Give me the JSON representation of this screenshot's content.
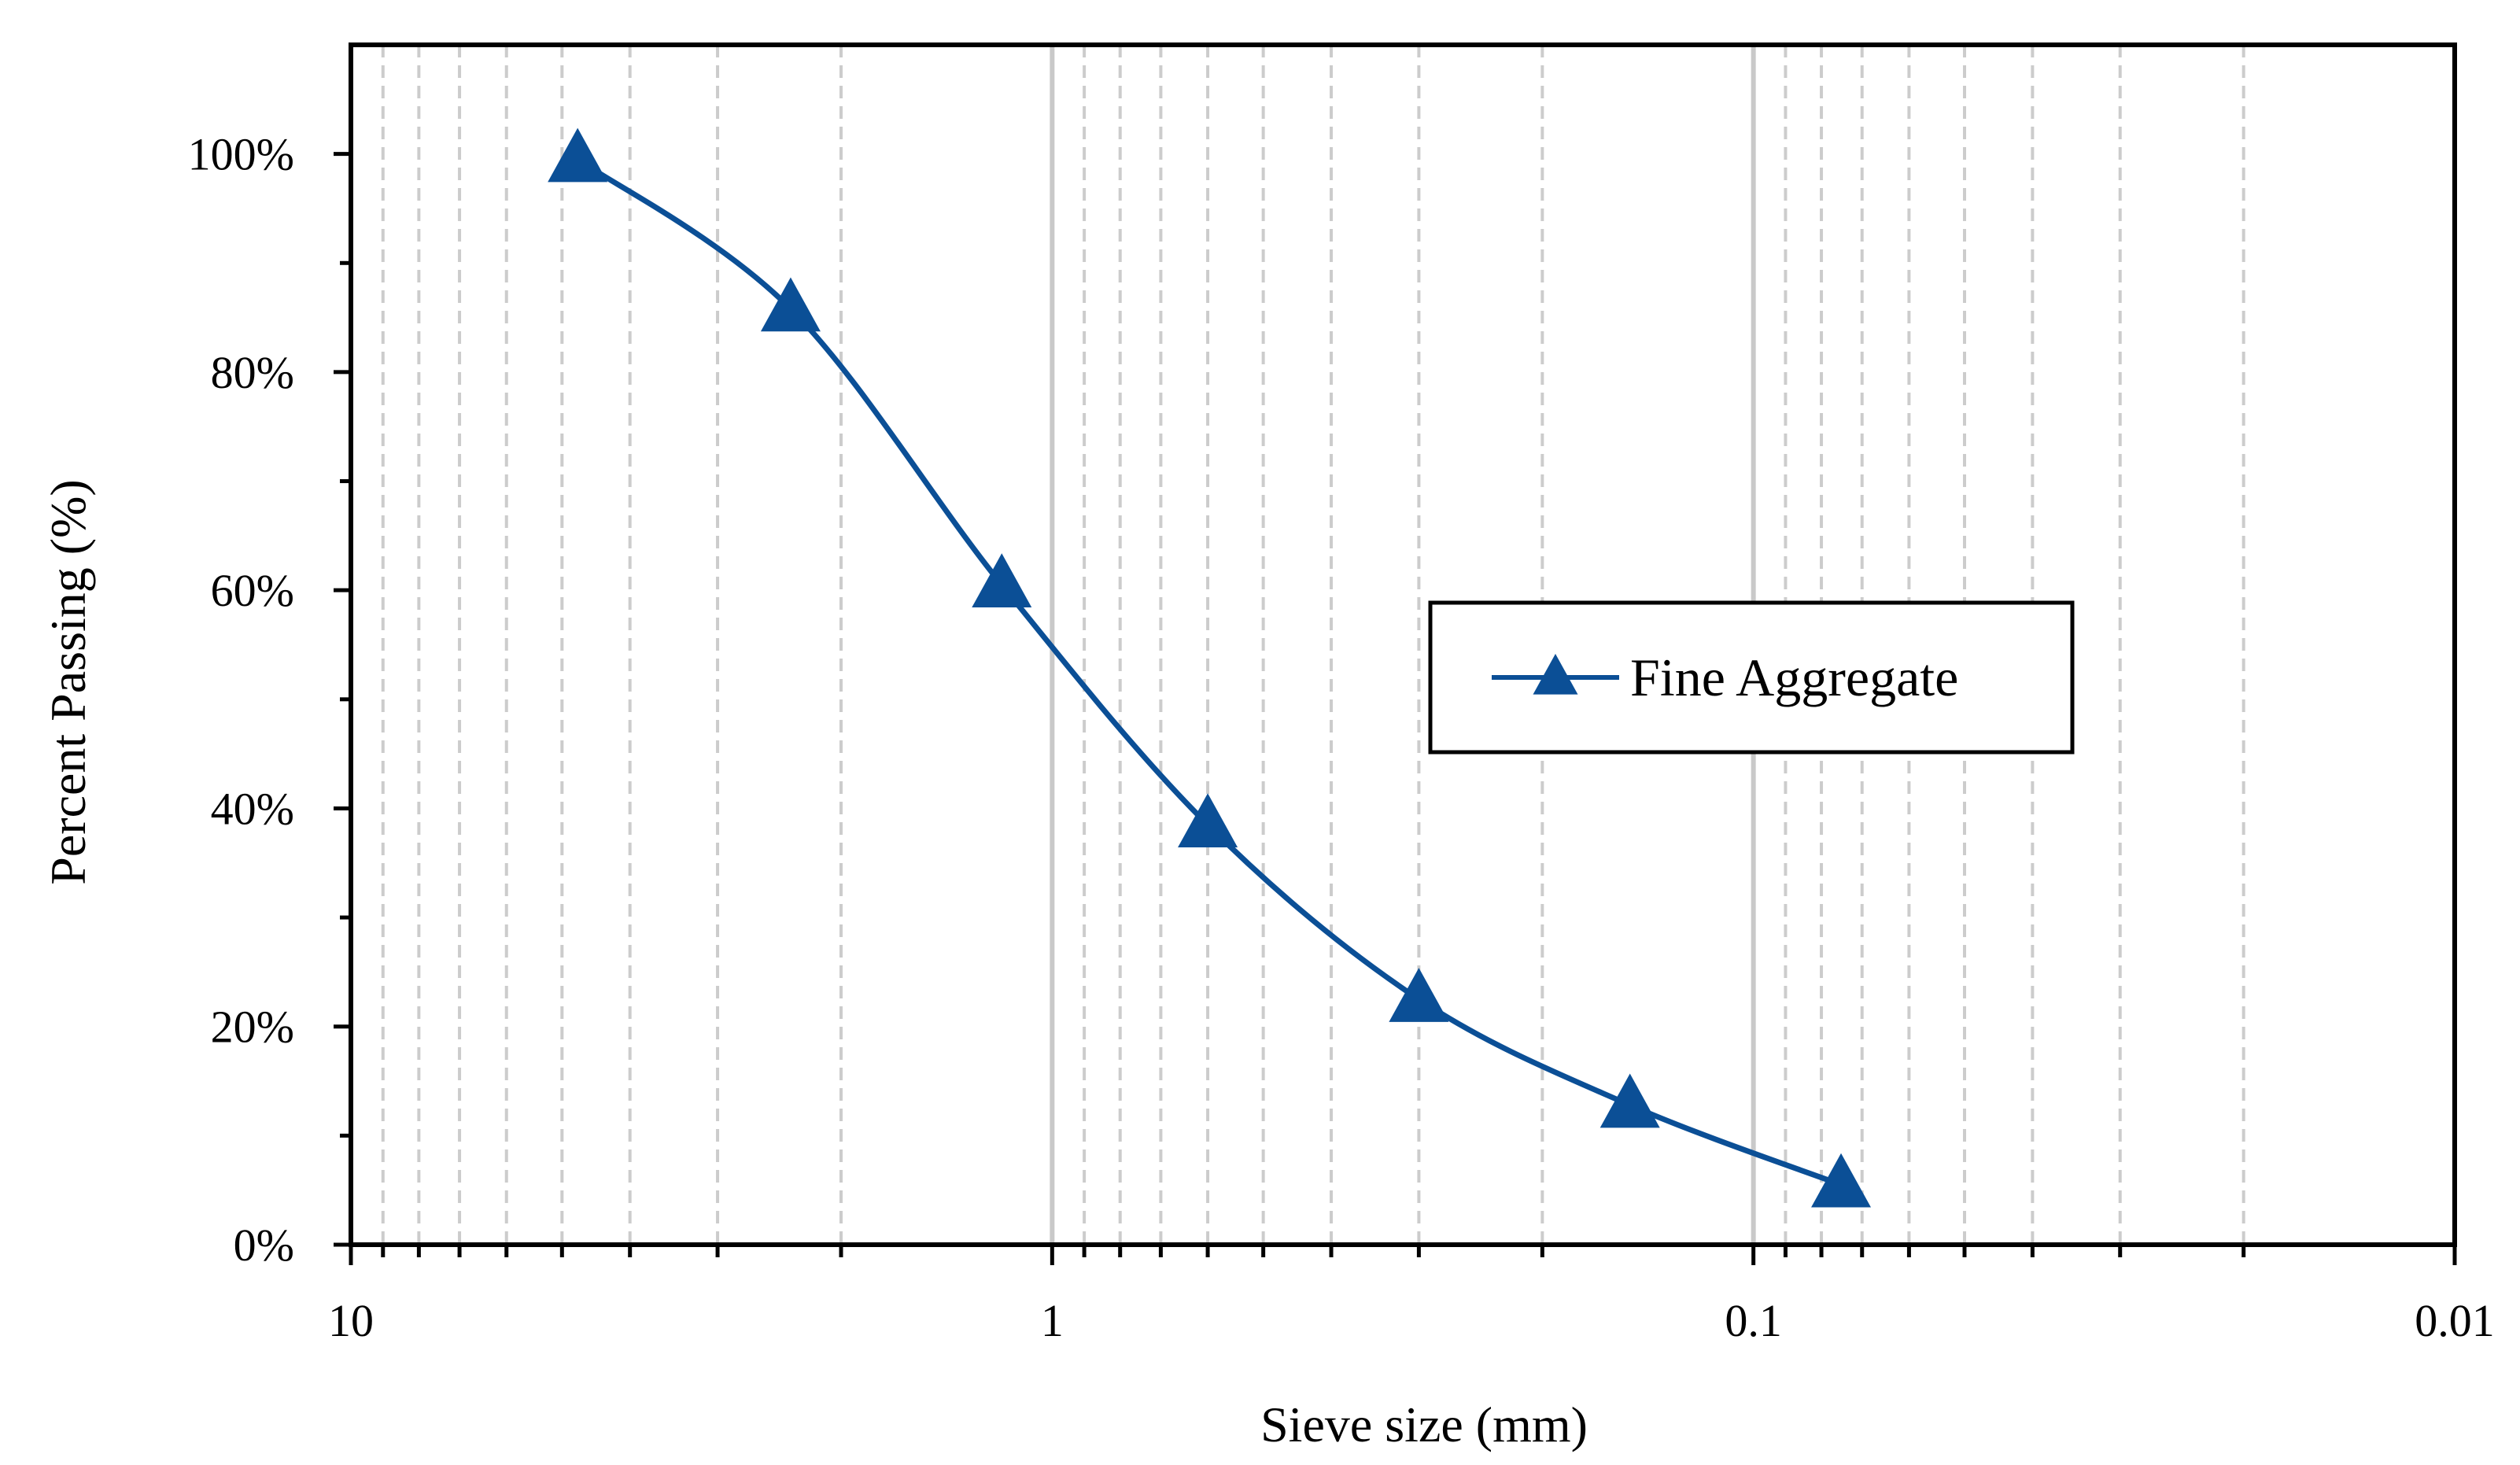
{
  "chart_data": {
    "type": "line",
    "xlabel": "Sieve size (mm)",
    "ylabel": "Percent Passing (%)",
    "x_scale": "log",
    "x_reversed": true,
    "xlim": [
      10,
      0.01
    ],
    "ylim": [
      0,
      110
    ],
    "x_tick_labels": [
      {
        "value": 10,
        "label": "10"
      },
      {
        "value": 1,
        "label": "1"
      },
      {
        "value": 0.1,
        "label": "0.1"
      },
      {
        "value": 0.01,
        "label": "0.01"
      }
    ],
    "y_tick_labels": [
      {
        "value": 0,
        "label": "0%"
      },
      {
        "value": 20,
        "label": "20%"
      },
      {
        "value": 40,
        "label": "40%"
      },
      {
        "value": 60,
        "label": "60%"
      },
      {
        "value": 80,
        "label": "80%"
      },
      {
        "value": 100,
        "label": "100%"
      }
    ],
    "grid": {
      "major_x": "solid light gray",
      "minor_x": "dashed light gray",
      "y": false
    },
    "legend": {
      "placement": "center-right",
      "border": true
    },
    "series": [
      {
        "name": "Fine Aggregate",
        "color": "#0b4f96",
        "marker": "triangle",
        "smooth": true,
        "x": [
          4.75,
          2.36,
          1.18,
          0.6,
          0.3,
          0.15,
          0.075
        ],
        "y": [
          99.5,
          85.8,
          60.5,
          38.5,
          22.5,
          12.8,
          5.5
        ]
      }
    ]
  }
}
